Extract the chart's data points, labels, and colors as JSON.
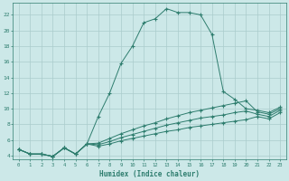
{
  "xlabel": "Humidex (Indice chaleur)",
  "background_color": "#cce8e8",
  "grid_color": "#aacccc",
  "line_color": "#2e7d6e",
  "xlim": [
    -0.5,
    23.5
  ],
  "ylim": [
    3.5,
    23.5
  ],
  "xticks": [
    0,
    1,
    2,
    3,
    4,
    5,
    6,
    7,
    8,
    9,
    10,
    11,
    12,
    13,
    14,
    15,
    16,
    17,
    18,
    19,
    20,
    21,
    22,
    23
  ],
  "yticks": [
    4,
    6,
    8,
    10,
    12,
    14,
    16,
    18,
    20,
    22
  ],
  "line1_x": [
    0,
    1,
    2,
    3,
    4,
    5,
    6,
    7,
    8,
    9,
    10,
    11,
    12,
    13,
    14,
    15,
    16,
    17,
    18,
    19,
    20,
    21,
    22,
    23
  ],
  "line1_y": [
    4.8,
    4.2,
    4.2,
    3.9,
    5.0,
    4.2,
    5.5,
    9.0,
    12.0,
    15.8,
    18.0,
    21.0,
    21.5,
    22.8,
    22.3,
    22.3,
    22.0,
    19.5,
    12.2,
    11.2,
    10.0,
    9.8,
    9.5,
    10.2
  ],
  "line2_x": [
    0,
    1,
    2,
    3,
    4,
    5,
    6,
    7,
    8,
    9,
    10,
    11,
    12,
    13,
    14,
    15,
    16,
    17,
    18,
    19,
    20,
    21,
    22,
    23
  ],
  "line2_y": [
    4.8,
    4.2,
    4.2,
    3.9,
    5.0,
    4.2,
    5.5,
    5.6,
    6.2,
    6.8,
    7.3,
    7.8,
    8.2,
    8.7,
    9.1,
    9.5,
    9.8,
    10.1,
    10.4,
    10.7,
    11.0,
    9.6,
    9.3,
    10.0
  ],
  "line3_x": [
    0,
    1,
    2,
    3,
    4,
    5,
    6,
    7,
    8,
    9,
    10,
    11,
    12,
    13,
    14,
    15,
    16,
    17,
    18,
    19,
    20,
    21,
    22,
    23
  ],
  "line3_y": [
    4.8,
    4.2,
    4.2,
    3.9,
    5.0,
    4.2,
    5.5,
    5.4,
    5.8,
    6.3,
    6.7,
    7.1,
    7.5,
    7.9,
    8.2,
    8.5,
    8.8,
    9.0,
    9.2,
    9.5,
    9.7,
    9.3,
    9.0,
    9.8
  ],
  "line4_x": [
    0,
    1,
    2,
    3,
    4,
    5,
    6,
    7,
    8,
    9,
    10,
    11,
    12,
    13,
    14,
    15,
    16,
    17,
    18,
    19,
    20,
    21,
    22,
    23
  ],
  "line4_y": [
    4.8,
    4.2,
    4.2,
    3.9,
    5.0,
    4.2,
    5.5,
    5.2,
    5.5,
    5.9,
    6.2,
    6.5,
    6.8,
    7.1,
    7.3,
    7.6,
    7.8,
    8.0,
    8.2,
    8.4,
    8.6,
    9.0,
    8.7,
    9.5
  ]
}
